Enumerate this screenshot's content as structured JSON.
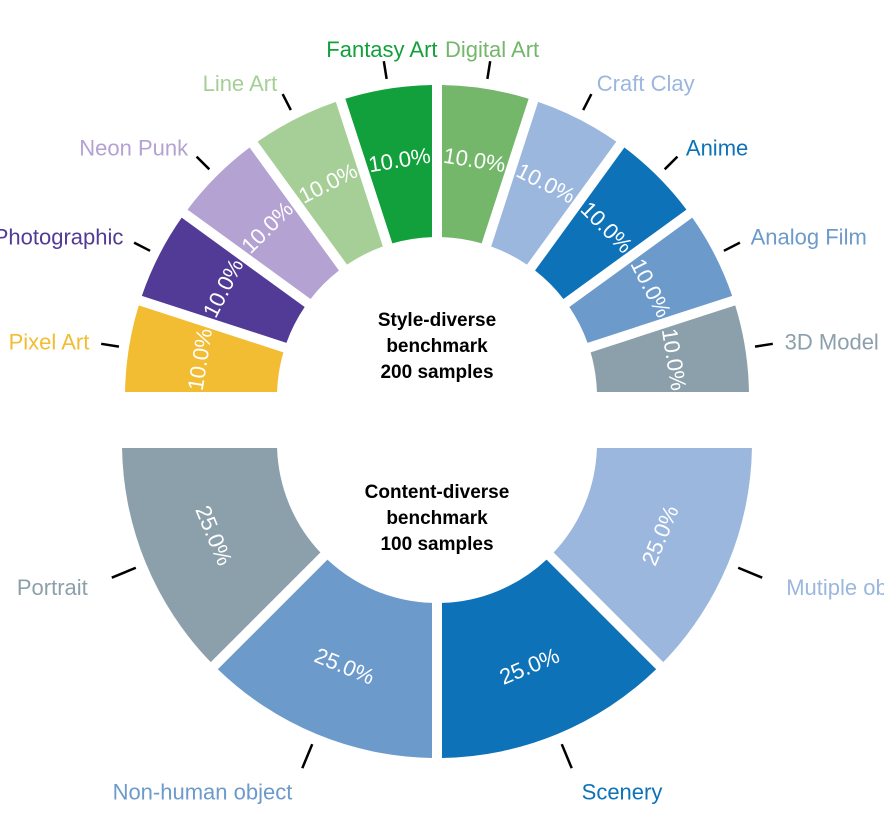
{
  "chart_data": [
    {
      "type": "pie",
      "center_label": [
        "Style-diverse",
        "benchmark",
        "200 samples"
      ],
      "categories": [
        "Pixel Art",
        "Photographic",
        "Neon Punk",
        "Line Art",
        "Fantasy Art",
        "Digital Art",
        "Craft Clay",
        "Anime",
        "Analog Film",
        "3D Model"
      ],
      "values": [
        10.0,
        10.0,
        10.0,
        10.0,
        10.0,
        10.0,
        10.0,
        10.0,
        10.0,
        10.0
      ],
      "value_labels": [
        "10.0%",
        "10.0%",
        "10.0%",
        "10.0%",
        "10.0%",
        "10.0%",
        "10.0%",
        "10.0%",
        "10.0%",
        "10.0%"
      ],
      "colors": [
        "#f2bd33",
        "#523b97",
        "#b3a2d2",
        "#a6cf97",
        "#12a03c",
        "#74b76b",
        "#9cb7de",
        "#0d72b8",
        "#6c9acb",
        "#8ca0ac"
      ]
    },
    {
      "type": "pie",
      "center_label": [
        "Content-diverse",
        "benchmark",
        "100 samples"
      ],
      "categories": [
        "Portrait",
        "Non-human object",
        "Scenery",
        "Mutiple objects"
      ],
      "values": [
        25.0,
        25.0,
        25.0,
        25.0
      ],
      "value_labels": [
        "25.0%",
        "25.0%",
        "25.0%",
        "25.0%"
      ],
      "colors": [
        "#8ca0ac",
        "#6c9acb",
        "#0d72b8",
        "#9cb7de"
      ]
    }
  ]
}
